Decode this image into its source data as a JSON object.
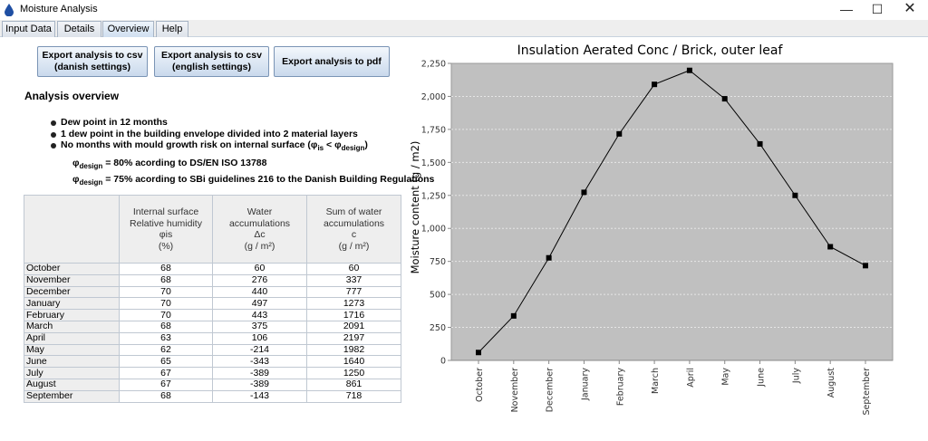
{
  "window": {
    "title": "Moisture Analysis",
    "min": "—",
    "max": "☐",
    "close": "✕"
  },
  "tabs": [
    "Input Data",
    "Details",
    "Overview",
    "Help"
  ],
  "active_tab": "Overview",
  "buttons": {
    "csv_danish": "Export analysis to csv\n(danish settings)",
    "csv_english": "Export analysis to csv\n(english settings)",
    "pdf": "Export analysis to pdf"
  },
  "overview": {
    "title": "Analysis overview",
    "bullets": [
      "Dew point in 12 months",
      "1 dew point in the building envelope divided into 2 material layers"
    ],
    "mould_prefix": "No months with mould growth risk on internal surface (φ",
    "mould_sub1": "is",
    "mould_mid": " < φ",
    "mould_sub2": "design",
    "mould_suffix": ")",
    "note1_phi": "φ",
    "note1_sub": "design",
    "note1_text": " = 80% acording to DS/EN ISO 13788",
    "note2_phi": "φ",
    "note2_sub": "design",
    "note2_text": " = 75% acording to SBi guidelines 216 to the Danish Building Regulations"
  },
  "table": {
    "headers": [
      "",
      "Internal surface\nRelative humidity\nφis\n(%)",
      "Water\naccumulations\nΔc\n(g / m²)",
      "Sum of water\naccumulations\nc\n(g / m²)"
    ],
    "rows": [
      [
        "October",
        "68",
        "60",
        "60"
      ],
      [
        "November",
        "68",
        "276",
        "337"
      ],
      [
        "December",
        "70",
        "440",
        "777"
      ],
      [
        "January",
        "70",
        "497",
        "1273"
      ],
      [
        "February",
        "70",
        "443",
        "1716"
      ],
      [
        "March",
        "68",
        "375",
        "2091"
      ],
      [
        "April",
        "63",
        "106",
        "2197"
      ],
      [
        "May",
        "62",
        "-214",
        "1982"
      ],
      [
        "June",
        "65",
        "-343",
        "1640"
      ],
      [
        "July",
        "67",
        "-389",
        "1250"
      ],
      [
        "August",
        "67",
        "-389",
        "861"
      ],
      [
        "September",
        "68",
        "-143",
        "718"
      ]
    ]
  },
  "chart_data": {
    "type": "line",
    "title": "Insulation Aerated Conc / Brick, outer leaf",
    "ylabel": "Moisture content (g / m2)",
    "xlabel": "",
    "categories": [
      "October",
      "November",
      "December",
      "January",
      "February",
      "March",
      "April",
      "May",
      "June",
      "July",
      "August",
      "September"
    ],
    "values": [
      60,
      337,
      777,
      1273,
      1716,
      2091,
      2197,
      1982,
      1640,
      1250,
      861,
      718
    ],
    "ylim": [
      0,
      2250
    ],
    "yticks": [
      "0",
      "250",
      "500",
      "750",
      "1,000",
      "1,250",
      "1,500",
      "1,750",
      "2,000",
      "2,250"
    ],
    "grid": true,
    "colors": {
      "plot_bg": "#c0c0c0",
      "line": "#000000",
      "grid": "#e6e6e6"
    }
  }
}
